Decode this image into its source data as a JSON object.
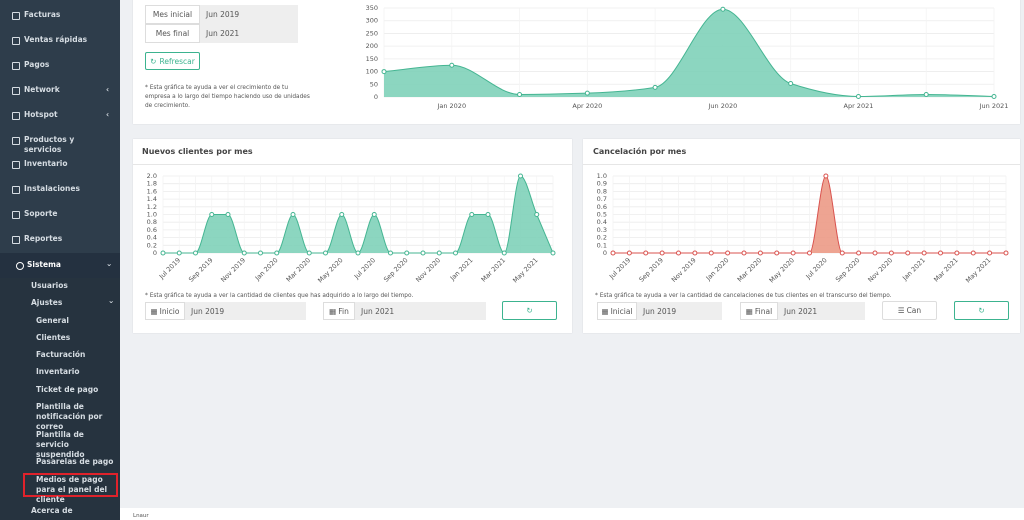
{
  "sidebar": {
    "menu": [
      "Facturas",
      "Ventas rápidas",
      "Pagos",
      "Network",
      "Hotspot",
      "Productos y servicios",
      "Inventario",
      "Instalaciones",
      "Soporte",
      "Reportes"
    ],
    "active": "Sistema",
    "submenu": [
      "Usuarios",
      "Ajustes",
      "Acerca de"
    ],
    "settings": [
      "General",
      "Clientes",
      "Facturación",
      "Inventario",
      "Ticket de pago",
      "Plantilla de notificación por correo",
      "Plantilla de servicio suspendido",
      "Pasarelas de pago",
      "Medios de pago para el panel del cliente"
    ]
  },
  "growth_panel": {
    "start_label": "Mes inicial",
    "start_value": "Jun 2019",
    "end_label": "Mes final",
    "end_value": "Jun 2021",
    "button": "Refrescar",
    "note": "* Esta gráfica te ayuda a ver el crecimiento de tu empresa a lo largo del tiempo haciendo uso de unidades de crecimiento."
  },
  "clients_panel": {
    "note": "* Esta gráfica te ayuda a ver la cantidad de clientes que has adquirido a lo largo del tiempo.",
    "start_label": "Inicio",
    "start_value": "Jun 2019",
    "end_label": "Fin",
    "end_value": "Jun 2021"
  },
  "cancel_panel": {
    "note": "* Esta gráfica te ayuda a ver la cantidad de cancelaciones de tus clientes en el transcurso del tiempo.",
    "start_label": "Inicial",
    "start_value": "Jun 2019",
    "end_label": "Final",
    "end_value": "Jun 2021",
    "button": "Can"
  },
  "footer": "Lnaur",
  "chart_data": [
    {
      "type": "area",
      "categories": [
        null,
        "Jan 2020",
        null,
        "Apr 2020",
        null,
        "Jun 2020",
        null,
        "Apr 2021",
        null,
        "Jun 2021"
      ],
      "values": [
        100,
        125,
        10,
        15,
        38,
        345,
        53,
        2,
        10,
        2
      ],
      "color": "#7fd1b9",
      "line_color": "#45b592",
      "ylim": [
        0,
        350
      ],
      "yticks": [
        0,
        50,
        100,
        150,
        200,
        250,
        300,
        350
      ],
      "grid": true
    },
    {
      "type": "area",
      "title": "Nuevos clientes por mes",
      "categories": [
        null,
        "Jul 2019",
        null,
        "Sep 2019",
        null,
        "Nov 2019",
        null,
        "Jan 2020",
        null,
        "Mar 2020",
        null,
        "May 2020",
        null,
        "Jul 2020",
        null,
        "Sep 2020",
        null,
        "Nov 2020",
        null,
        "Jan 2021",
        null,
        "Mar 2021",
        null,
        "May 2021",
        null
      ],
      "values": [
        0,
        0,
        0,
        1,
        1,
        0,
        0,
        0,
        1,
        0,
        0,
        1,
        0,
        1,
        0,
        0,
        0,
        0,
        0,
        1,
        1,
        0,
        2,
        1,
        0
      ],
      "color": "#7fd1b9",
      "line_color": "#45b592",
      "ylim": [
        0,
        2
      ],
      "yticks": [
        0,
        0.2,
        0.4,
        0.6,
        0.8,
        {
          "value": 1,
          "label": "1.0"
        },
        1.2,
        1.4,
        1.6,
        1.8,
        {
          "value": 2,
          "label": "2.0"
        }
      ],
      "grid": true
    },
    {
      "type": "area",
      "title": "Cancelación por mes",
      "categories": [
        null,
        "Jul 2019",
        null,
        "Sep 2019",
        null,
        "Nov 2019",
        null,
        "Jan 2020",
        null,
        "Mar 2020",
        null,
        "May 2020",
        null,
        "Jul 2020",
        null,
        "Sep 2020",
        null,
        "Nov 2020",
        null,
        "Jan 2021",
        null,
        "Mar 2021",
        null,
        "May 2021",
        null
      ],
      "values": [
        0,
        0,
        0,
        0,
        0,
        0,
        0,
        0,
        0,
        0,
        0,
        0,
        0,
        1,
        0,
        0,
        0,
        0,
        0,
        0,
        0,
        0,
        0,
        0,
        0
      ],
      "color": "#ec9a86",
      "line_color": "#d9534f",
      "ylim": [
        0,
        1
      ],
      "yticks": [
        0,
        0.1,
        0.2,
        0.3,
        0.4,
        0.5,
        0.6,
        0.7,
        0.8,
        0.9,
        {
          "value": 1,
          "label": "1.0"
        }
      ],
      "grid": true
    }
  ]
}
